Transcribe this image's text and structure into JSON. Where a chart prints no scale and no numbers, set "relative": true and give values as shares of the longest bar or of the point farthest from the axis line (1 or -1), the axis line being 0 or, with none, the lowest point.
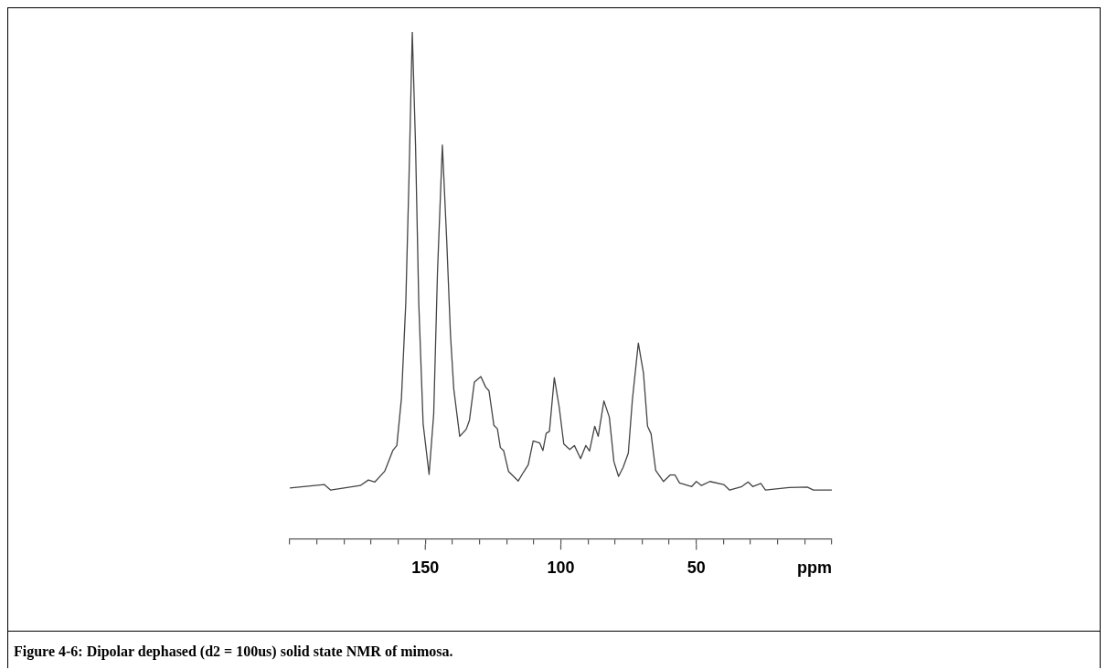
{
  "chart_data": {
    "type": "line",
    "relative": true,
    "xlabel": "ppm",
    "annotations": [
      "Figure 4-6: Dipolar dephased (d2 = 100us) solid state NMR of mimosa."
    ],
    "xlim": [
      200,
      0
    ],
    "xticks": [
      {
        "value": 200,
        "label": null
      },
      {
        "value": 190,
        "label": null
      },
      {
        "value": 180,
        "label": null
      },
      {
        "value": 170,
        "label": null
      },
      {
        "value": 160,
        "label": null
      },
      150,
      {
        "value": 140,
        "label": null
      },
      {
        "value": 130,
        "label": null
      },
      {
        "value": 120,
        "label": null
      },
      {
        "value": 110,
        "label": null
      },
      100,
      {
        "value": 90,
        "label": null
      },
      {
        "value": 80,
        "label": null
      },
      {
        "value": 70,
        "label": null
      },
      {
        "value": 60,
        "label": null
      },
      50,
      {
        "value": 40,
        "label": null
      },
      {
        "value": 30,
        "label": null
      },
      {
        "value": 20,
        "label": null
      },
      {
        "value": 10,
        "label": null
      },
      {
        "value": 0,
        "label": null
      }
    ],
    "legend": false,
    "grid": false,
    "marker": "none",
    "line_style": "solid",
    "series": [
      {
        "color": "#444444",
        "x": [
          200,
          187.3,
          184.9,
          174,
          171,
          168.6,
          165,
          163.8,
          162,
          160.5,
          158.8,
          157.2,
          156,
          154.8,
          153.6,
          152.4,
          150.8,
          148.6,
          146.9,
          145.5,
          143.7,
          142.1,
          140.7,
          139.5,
          137.3,
          134.9,
          133.7,
          131.9,
          129.5,
          127.7,
          126.5,
          124.7,
          123.4,
          122.3,
          121.1,
          119.3,
          115.7,
          113.8,
          112,
          110.2,
          107.8,
          106.6,
          105.4,
          104.2,
          102.4,
          100.6,
          98.9,
          96.7,
          95,
          92.7,
          90.8,
          89.4,
          87.5,
          86.2,
          84.1,
          82.1,
          80.4,
          78.7,
          77,
          75.1,
          73.6,
          71.4,
          69.5,
          68,
          66.7,
          65,
          62.1,
          59.6,
          57.9,
          56.2,
          51.7,
          50,
          48.1,
          45,
          39.9,
          37.7,
          33.2,
          30.9,
          29.2,
          26.2,
          24.5,
          15.8,
          9.1,
          6.8,
          0
        ],
        "values": [
          0.1,
          0.107,
          0.096,
          0.105,
          0.116,
          0.112,
          0.133,
          0.149,
          0.174,
          0.184,
          0.277,
          0.465,
          0.714,
          1,
          0.777,
          0.464,
          0.227,
          0.127,
          0.246,
          0.526,
          0.777,
          0.589,
          0.402,
          0.296,
          0.202,
          0.216,
          0.234,
          0.309,
          0.32,
          0.299,
          0.292,
          0.224,
          0.217,
          0.18,
          0.174,
          0.133,
          0.114,
          0.131,
          0.146,
          0.193,
          0.189,
          0.174,
          0.208,
          0.212,
          0.318,
          0.26,
          0.187,
          0.176,
          0.184,
          0.158,
          0.184,
          0.173,
          0.222,
          0.202,
          0.272,
          0.24,
          0.152,
          0.123,
          0.141,
          0.169,
          0.274,
          0.386,
          0.327,
          0.222,
          0.207,
          0.135,
          0.113,
          0.126,
          0.126,
          0.11,
          0.103,
          0.113,
          0.105,
          0.113,
          0.107,
          0.096,
          0.103,
          0.112,
          0.103,
          0.109,
          0.096,
          0.101,
          0.102,
          0.096,
          0.096
        ]
      }
    ]
  }
}
